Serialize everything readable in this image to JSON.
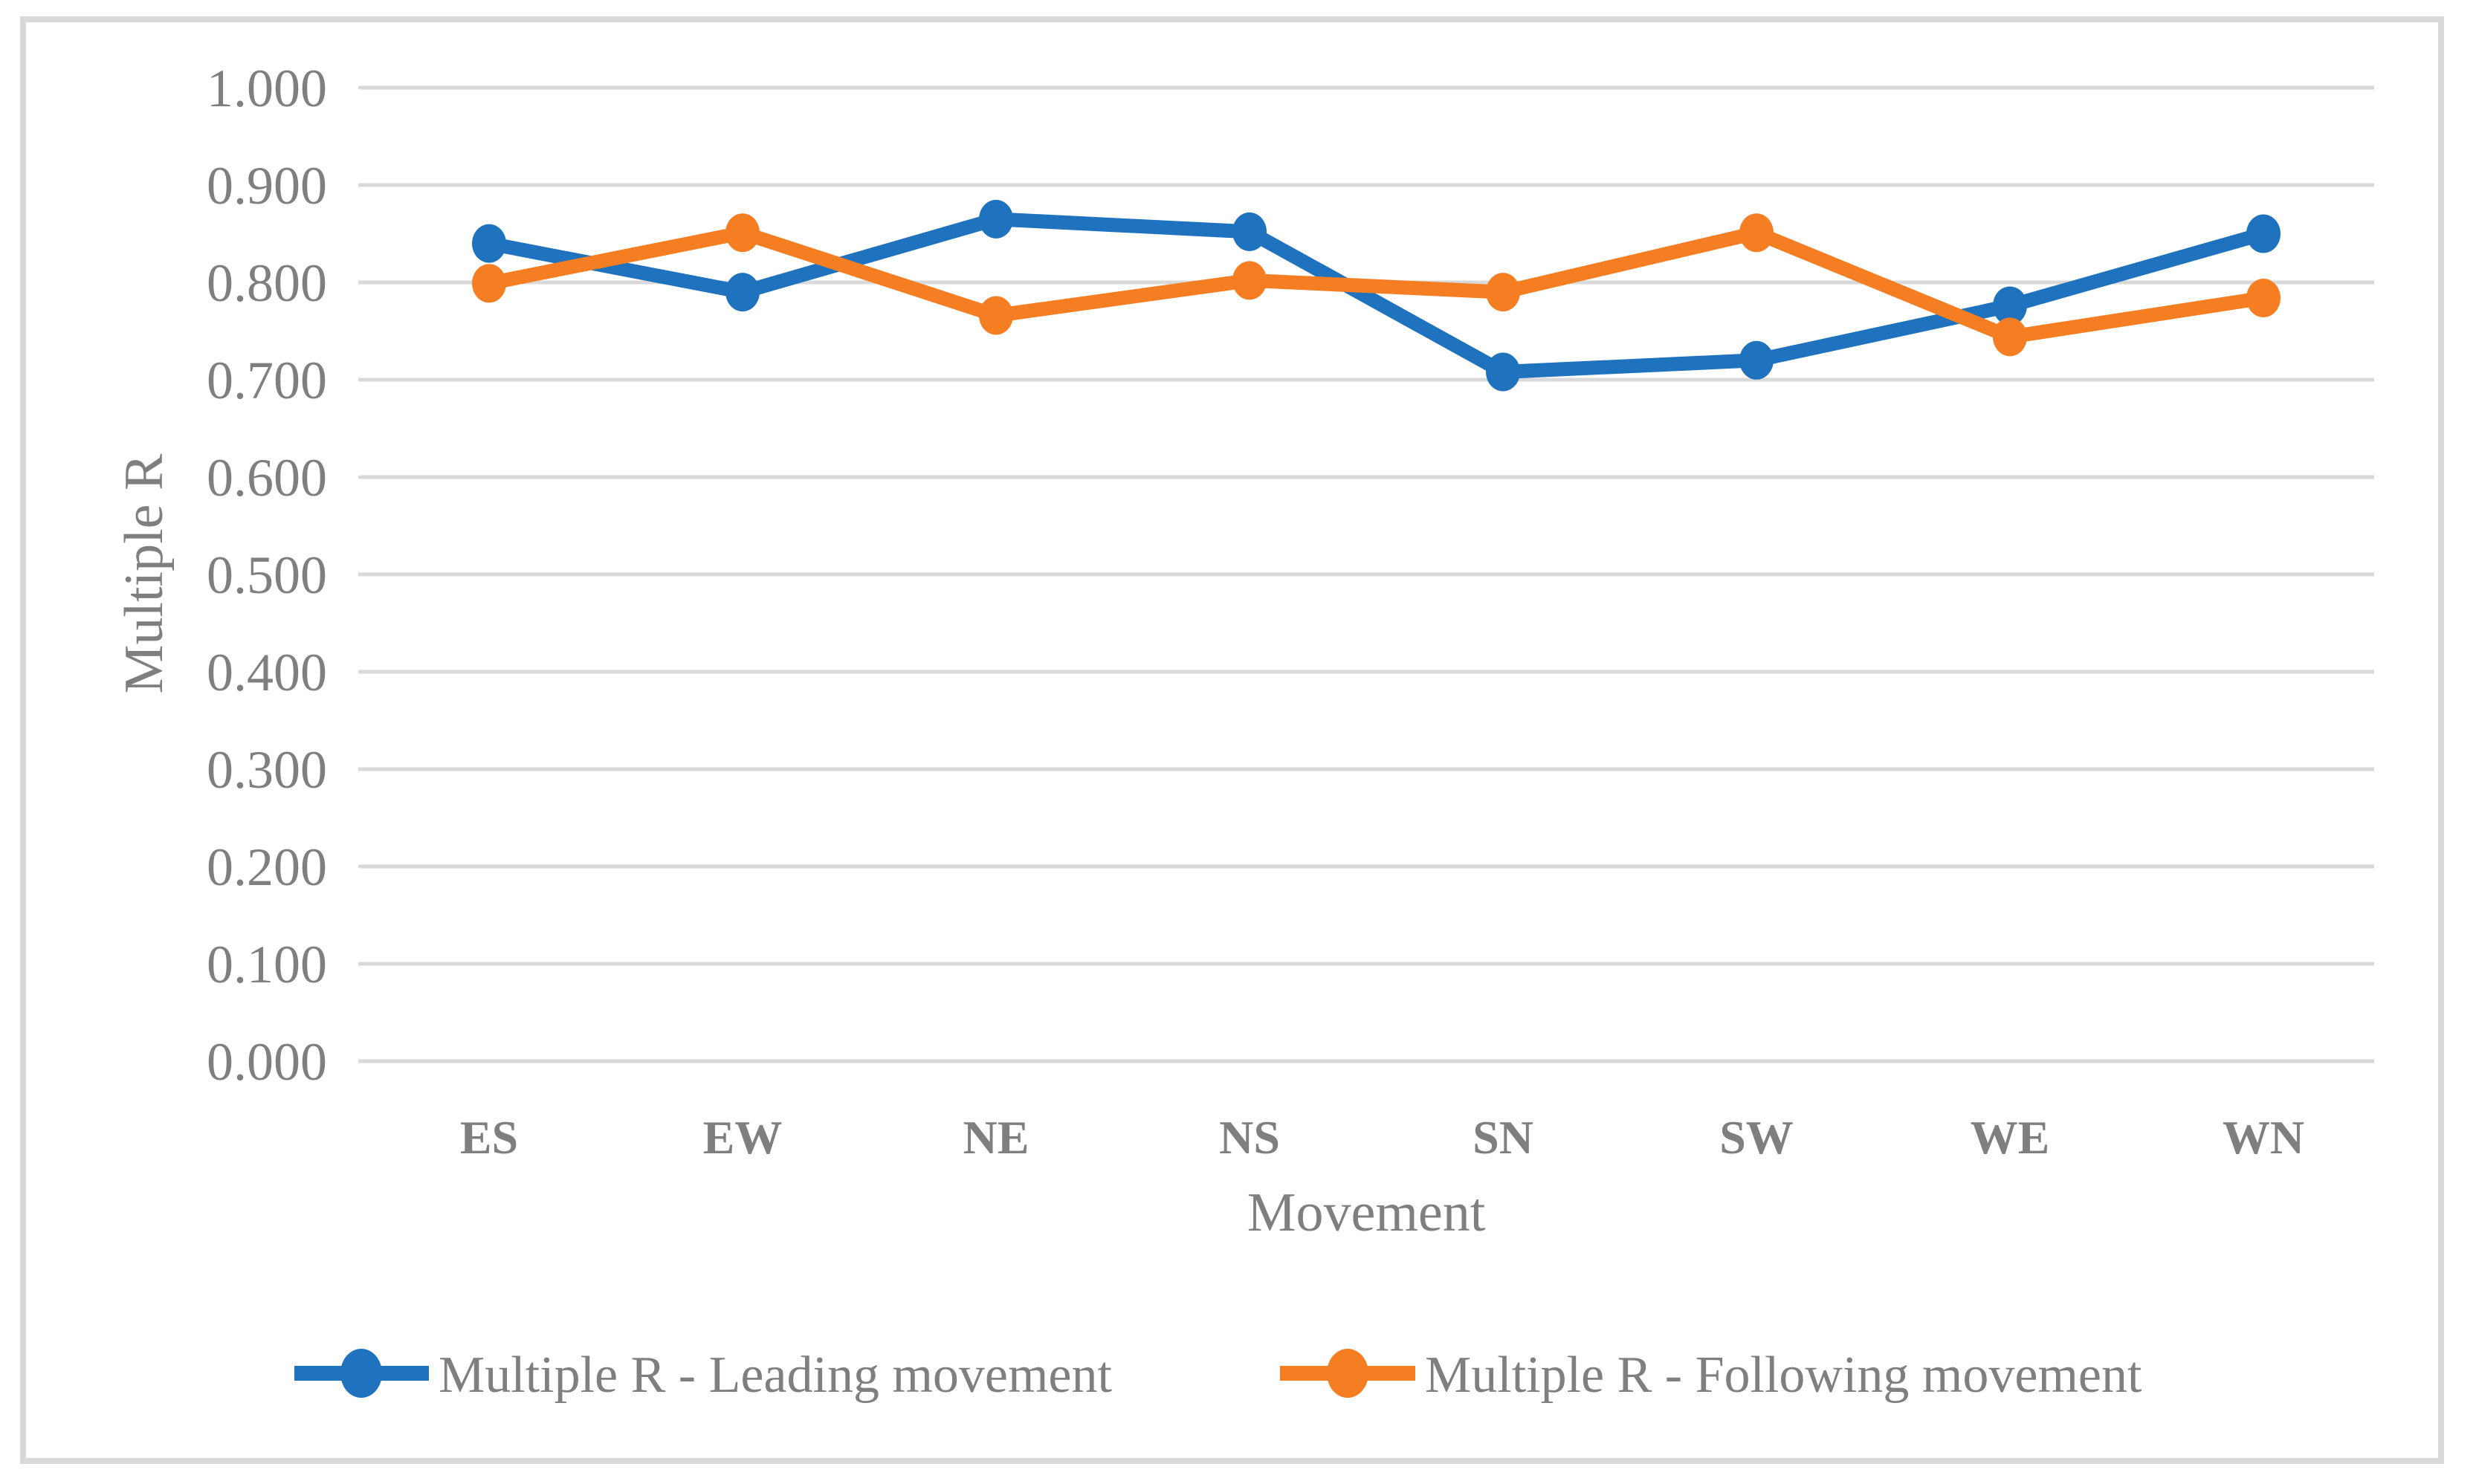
{
  "figure": {
    "background": "#ffffff",
    "border_color": "#d9d9d9",
    "grid_color": "#d9d9d9",
    "text_color": "#7f7f7f"
  },
  "chart_data": {
    "type": "line",
    "title": "",
    "xlabel": "Movement",
    "ylabel": "Multiple R",
    "categories": [
      "ES",
      "EW",
      "NE",
      "NS",
      "SN",
      "SW",
      "WE",
      "WN"
    ],
    "series": [
      {
        "name": "Multiple R - Leading movement",
        "color": "#1f72bd",
        "values": [
          0.84,
          0.79,
          0.865,
          0.852,
          0.708,
          0.72,
          0.776,
          0.85
        ]
      },
      {
        "name": "Multiple R - Following movement",
        "color": "#f57e23",
        "values": [
          0.799,
          0.851,
          0.766,
          0.802,
          0.79,
          0.851,
          0.744,
          0.784
        ]
      }
    ],
    "ylim": [
      0.0,
      1.0
    ],
    "ytick_step": 0.1,
    "ytick_labels": [
      "0.000",
      "0.100",
      "0.200",
      "0.300",
      "0.400",
      "0.500",
      "0.600",
      "0.700",
      "0.800",
      "0.900",
      "1.000"
    ],
    "grid": "horizontal",
    "legend_position": "bottom",
    "marker": "circle"
  }
}
